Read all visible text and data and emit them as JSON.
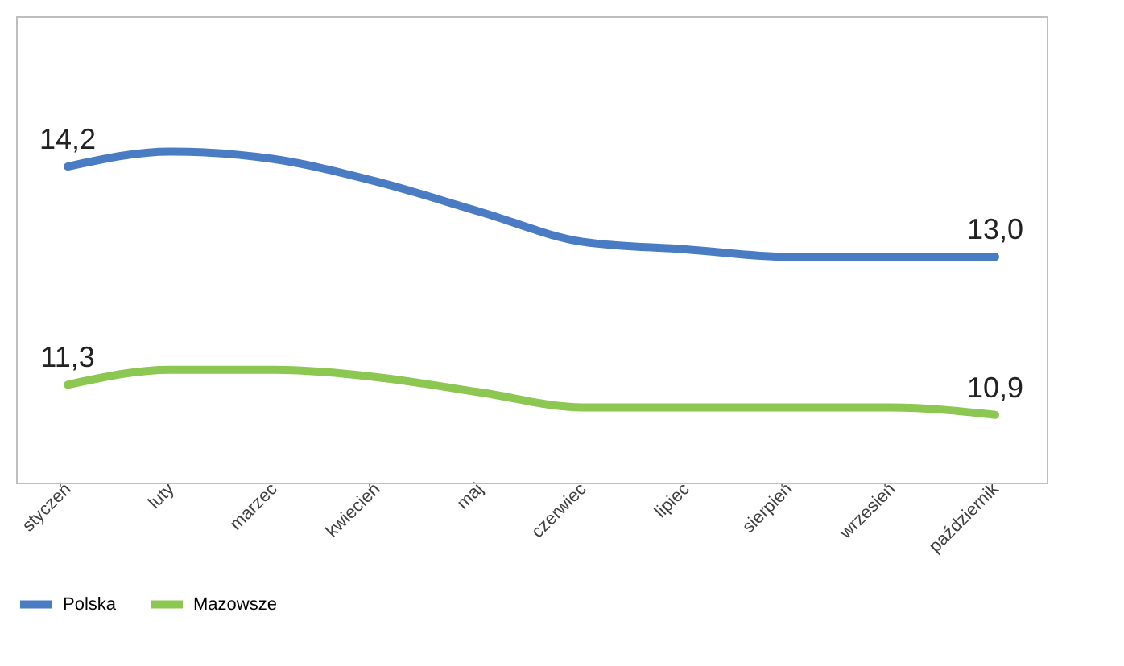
{
  "chart_data": {
    "type": "line",
    "categories": [
      "styczeń",
      "luty",
      "marzec",
      "kwiecień",
      "maj",
      "czerwiec",
      "lipiec",
      "sierpień",
      "wrzesień",
      "październik"
    ],
    "series": [
      {
        "name": "Polska",
        "color": "#4a7cc4",
        "values": [
          14.2,
          14.4,
          14.3,
          14.0,
          13.6,
          13.2,
          13.1,
          13.0,
          13.0,
          13.0
        ],
        "value_labels": [
          "14,2",
          null,
          null,
          null,
          null,
          null,
          null,
          null,
          null,
          "13,0"
        ]
      },
      {
        "name": "Mazowsze",
        "color": "#8cc751",
        "values": [
          11.3,
          11.5,
          11.5,
          11.4,
          11.2,
          11.0,
          11.0,
          11.0,
          11.0,
          10.9
        ],
        "value_labels": [
          "11,3",
          null,
          null,
          null,
          null,
          null,
          null,
          null,
          null,
          "10,9"
        ]
      }
    ],
    "ylim": [
      10,
      16.2
    ],
    "tick_labels": "x",
    "grid": false,
    "legend": "bottom",
    "marker": "none",
    "line_style": "solid"
  }
}
